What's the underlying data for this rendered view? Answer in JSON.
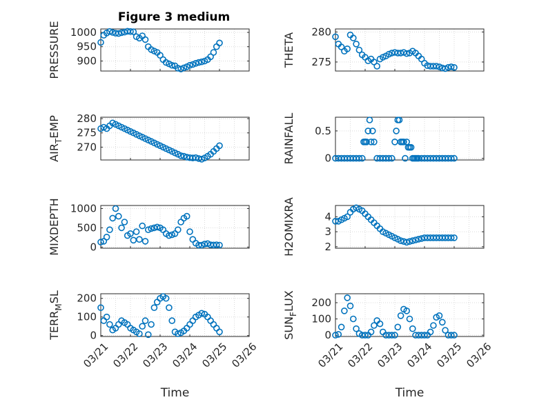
{
  "figure": {
    "title": "Figure 3 medium"
  },
  "chart_data": [
    {
      "type": "scatter",
      "title": "Figure 3 medium",
      "ylabel": "PRESSURE",
      "xlabel": "",
      "xlim": [
        0,
        5
      ],
      "ylim": [
        865,
        1012
      ],
      "yticks": [
        900,
        950,
        1000
      ],
      "grid": true,
      "x": [
        0.0,
        0.1,
        0.2,
        0.3,
        0.4,
        0.5,
        0.6,
        0.7,
        0.8,
        0.9,
        1.0,
        1.1,
        1.2,
        1.3,
        1.4,
        1.5,
        1.6,
        1.7,
        1.8,
        1.9,
        2.0,
        2.1,
        2.2,
        2.3,
        2.4,
        2.5,
        2.6,
        2.7,
        2.8,
        2.9,
        3.0,
        3.1,
        3.2,
        3.3,
        3.4,
        3.5,
        3.6,
        3.7,
        3.8,
        3.9,
        4.0
      ],
      "y": [
        965,
        990,
        998,
        1003,
        1000,
        997,
        996,
        999,
        1001,
        1004,
        1003,
        1002,
        985,
        980,
        988,
        975,
        950,
        940,
        935,
        930,
        920,
        905,
        895,
        890,
        885,
        883,
        875,
        872,
        876,
        880,
        885,
        888,
        892,
        895,
        897,
        900,
        905,
        915,
        930,
        950,
        963
      ]
    },
    {
      "type": "scatter",
      "ylabel": "THETA",
      "xlabel": "",
      "xlim": [
        0,
        5
      ],
      "ylim": [
        273.5,
        280.5
      ],
      "yticks": [
        275,
        280
      ],
      "grid": true,
      "x": [
        0.0,
        0.1,
        0.2,
        0.3,
        0.4,
        0.5,
        0.6,
        0.7,
        0.8,
        0.9,
        1.0,
        1.1,
        1.2,
        1.3,
        1.4,
        1.5,
        1.6,
        1.7,
        1.8,
        1.9,
        2.0,
        2.1,
        2.2,
        2.3,
        2.4,
        2.5,
        2.6,
        2.7,
        2.8,
        2.9,
        3.0,
        3.1,
        3.2,
        3.3,
        3.4,
        3.5,
        3.6,
        3.7,
        3.8,
        3.9,
        4.0
      ],
      "y": [
        279.2,
        278.0,
        277.5,
        276.8,
        277.2,
        279.5,
        279.0,
        278.0,
        277.0,
        276.2,
        275.8,
        275.2,
        275.5,
        275.0,
        274.3,
        275.5,
        275.8,
        276.0,
        276.3,
        276.5,
        276.6,
        276.5,
        276.5,
        276.6,
        276.4,
        276.5,
        276.8,
        276.5,
        276.0,
        275.5,
        274.8,
        274.4,
        274.3,
        274.3,
        274.3,
        274.2,
        274.0,
        273.9,
        274.1,
        274.2,
        274.1
      ]
    },
    {
      "type": "scatter",
      "ylabel": "AIR_TEMP",
      "ylabel_main": "AIR",
      "ylabel_sub": "T",
      "ylabel_rest": "EMP",
      "xlabel": "",
      "xlim": [
        0,
        5
      ],
      "ylim": [
        265.5,
        280.5
      ],
      "yticks": [
        270,
        275,
        280
      ],
      "grid": true,
      "x": [
        0.0,
        0.1,
        0.2,
        0.3,
        0.4,
        0.5,
        0.6,
        0.7,
        0.8,
        0.9,
        1.0,
        1.1,
        1.2,
        1.3,
        1.4,
        1.5,
        1.6,
        1.7,
        1.8,
        1.9,
        2.0,
        2.1,
        2.2,
        2.3,
        2.4,
        2.5,
        2.6,
        2.7,
        2.8,
        2.9,
        3.0,
        3.1,
        3.2,
        3.3,
        3.4,
        3.5,
        3.6,
        3.7,
        3.8,
        3.9,
        4.0
      ],
      "y": [
        276.5,
        277.0,
        276.5,
        277.5,
        278.5,
        278.0,
        277.5,
        277.0,
        276.5,
        276.0,
        275.5,
        275.0,
        274.5,
        274.0,
        273.5,
        273.0,
        272.5,
        272.0,
        271.5,
        271.0,
        270.5,
        270.0,
        269.5,
        269.0,
        268.5,
        268.0,
        267.5,
        267.0,
        266.8,
        266.5,
        266.3,
        266.2,
        266.3,
        266.0,
        265.8,
        266.2,
        266.8,
        267.5,
        268.5,
        269.5,
        270.5
      ]
    },
    {
      "type": "scatter",
      "ylabel": "RAINFALL",
      "xlabel": "",
      "xlim": [
        0,
        5
      ],
      "ylim": [
        -0.03,
        0.75
      ],
      "yticks": [
        0,
        0.5
      ],
      "grid": true,
      "x": [
        0.0,
        0.1,
        0.2,
        0.3,
        0.4,
        0.5,
        0.6,
        0.7,
        0.8,
        0.9,
        0.95,
        1.0,
        1.05,
        1.1,
        1.15,
        1.2,
        1.25,
        1.3,
        1.4,
        1.5,
        1.6,
        1.7,
        1.8,
        1.9,
        2.0,
        2.05,
        2.1,
        2.15,
        2.2,
        2.25,
        2.3,
        2.35,
        2.4,
        2.45,
        2.5,
        2.55,
        2.6,
        2.65,
        2.7,
        2.75,
        2.8,
        2.9,
        3.0,
        3.1,
        3.2,
        3.3,
        3.4,
        3.5,
        3.6,
        3.7,
        3.8,
        3.9,
        4.0
      ],
      "y": [
        0,
        0,
        0,
        0,
        0,
        0,
        0,
        0,
        0,
        0,
        0.3,
        0.3,
        0.3,
        0.5,
        0.7,
        0.3,
        0.5,
        0.3,
        0,
        0,
        0,
        0,
        0,
        0,
        0.3,
        0.5,
        0.7,
        0.7,
        0.3,
        0.3,
        0.3,
        0,
        0.3,
        0.2,
        0.2,
        0.2,
        0,
        0,
        0,
        0,
        0,
        0,
        0,
        0,
        0,
        0,
        0,
        0,
        0,
        0,
        0,
        0,
        0
      ]
    },
    {
      "type": "scatter",
      "ylabel": "MIXDEPTH",
      "xlabel": "",
      "xlim": [
        0,
        5
      ],
      "ylim": [
        -30,
        1080
      ],
      "yticks": [
        0,
        500,
        1000
      ],
      "grid": true,
      "x": [
        0.0,
        0.1,
        0.2,
        0.3,
        0.4,
        0.5,
        0.6,
        0.7,
        0.8,
        0.9,
        1.0,
        1.1,
        1.2,
        1.3,
        1.4,
        1.5,
        1.6,
        1.7,
        1.8,
        1.9,
        2.0,
        2.1,
        2.2,
        2.3,
        2.4,
        2.5,
        2.6,
        2.7,
        2.8,
        2.9,
        3.0,
        3.1,
        3.2,
        3.3,
        3.4,
        3.5,
        3.6,
        3.7,
        3.8,
        3.9,
        4.0
      ],
      "y": [
        130,
        150,
        260,
        450,
        750,
        1000,
        800,
        500,
        650,
        300,
        350,
        180,
        400,
        200,
        550,
        150,
        450,
        480,
        500,
        520,
        500,
        450,
        350,
        300,
        320,
        350,
        450,
        650,
        750,
        800,
        400,
        200,
        100,
        50,
        50,
        80,
        90,
        60,
        55,
        60,
        50
      ]
    },
    {
      "type": "scatter",
      "ylabel": "H2OMIXRA",
      "xlabel": "",
      "xlim": [
        0,
        5
      ],
      "ylim": [
        1.9,
        4.75
      ],
      "yticks": [
        2,
        3,
        4
      ],
      "grid": true,
      "x": [
        0.0,
        0.1,
        0.2,
        0.3,
        0.4,
        0.5,
        0.6,
        0.7,
        0.8,
        0.9,
        1.0,
        1.1,
        1.2,
        1.3,
        1.4,
        1.5,
        1.6,
        1.7,
        1.8,
        1.9,
        2.0,
        2.1,
        2.2,
        2.3,
        2.4,
        2.5,
        2.6,
        2.7,
        2.8,
        2.9,
        3.0,
        3.1,
        3.2,
        3.3,
        3.4,
        3.5,
        3.6,
        3.7,
        3.8,
        3.9,
        4.0
      ],
      "y": [
        3.7,
        3.7,
        3.8,
        3.9,
        4.0,
        4.3,
        4.5,
        4.6,
        4.5,
        4.4,
        4.2,
        4.0,
        3.8,
        3.6,
        3.4,
        3.2,
        3.0,
        2.9,
        2.8,
        2.7,
        2.6,
        2.5,
        2.4,
        2.35,
        2.3,
        2.35,
        2.4,
        2.45,
        2.5,
        2.55,
        2.6,
        2.6,
        2.6,
        2.6,
        2.6,
        2.6,
        2.6,
        2.6,
        2.6,
        2.6,
        2.6
      ]
    },
    {
      "type": "scatter",
      "ylabel": "TERR_MSL",
      "ylabel_main": "TERR",
      "ylabel_sub": "M",
      "ylabel_rest": "SL",
      "xlabel": "Time",
      "xlim": [
        0,
        5
      ],
      "ylim": [
        -5,
        225
      ],
      "yticks": [
        0,
        100,
        200
      ],
      "grid": true,
      "xticks": [
        0,
        1,
        2,
        3,
        4,
        5
      ],
      "xticklabels": [
        "03/21",
        "03/22",
        "03/23",
        "03/24",
        "03/25",
        "03/26"
      ],
      "x": [
        0.0,
        0.1,
        0.2,
        0.3,
        0.4,
        0.5,
        0.6,
        0.7,
        0.8,
        0.9,
        1.0,
        1.1,
        1.2,
        1.3,
        1.4,
        1.5,
        1.6,
        1.7,
        1.8,
        1.9,
        2.0,
        2.1,
        2.2,
        2.3,
        2.4,
        2.5,
        2.6,
        2.7,
        2.8,
        2.9,
        3.0,
        3.1,
        3.2,
        3.3,
        3.4,
        3.5,
        3.6,
        3.7,
        3.8,
        3.9,
        4.0
      ],
      "y": [
        150,
        80,
        100,
        60,
        30,
        40,
        60,
        80,
        70,
        60,
        40,
        30,
        20,
        10,
        50,
        80,
        5,
        60,
        150,
        180,
        200,
        210,
        200,
        150,
        80,
        20,
        10,
        15,
        25,
        40,
        60,
        80,
        100,
        110,
        120,
        115,
        100,
        80,
        60,
        40,
        20
      ]
    },
    {
      "type": "scatter",
      "ylabel": "SUN_FLUX",
      "ylabel_main": "SUN",
      "ylabel_sub": "F",
      "ylabel_rest": "LUX",
      "xlabel": "Time",
      "xlim": [
        0,
        5
      ],
      "ylim": [
        -8,
        255
      ],
      "yticks": [
        0,
        100,
        200
      ],
      "grid": true,
      "xticks": [
        0,
        1,
        2,
        3,
        4,
        5
      ],
      "xticklabels": [
        "03/21",
        "03/22",
        "03/23",
        "03/24",
        "03/25",
        "03/26"
      ],
      "x": [
        0.0,
        0.1,
        0.2,
        0.3,
        0.4,
        0.5,
        0.6,
        0.7,
        0.8,
        0.9,
        1.0,
        1.1,
        1.2,
        1.3,
        1.4,
        1.5,
        1.6,
        1.7,
        1.8,
        1.9,
        2.0,
        2.1,
        2.2,
        2.3,
        2.4,
        2.5,
        2.6,
        2.7,
        2.8,
        2.9,
        3.0,
        3.1,
        3.2,
        3.3,
        3.4,
        3.5,
        3.6,
        3.7,
        3.8,
        3.9,
        4.0
      ],
      "y": [
        0,
        5,
        50,
        150,
        230,
        180,
        100,
        40,
        10,
        0,
        0,
        0,
        20,
        60,
        90,
        70,
        20,
        0,
        0,
        0,
        0,
        50,
        120,
        160,
        150,
        100,
        40,
        0,
        0,
        0,
        0,
        0,
        20,
        60,
        110,
        120,
        80,
        30,
        0,
        0,
        0
      ]
    }
  ],
  "colors": {
    "marker": "#0072BD",
    "axis": "#262626",
    "grid": "#d9d9d9"
  }
}
